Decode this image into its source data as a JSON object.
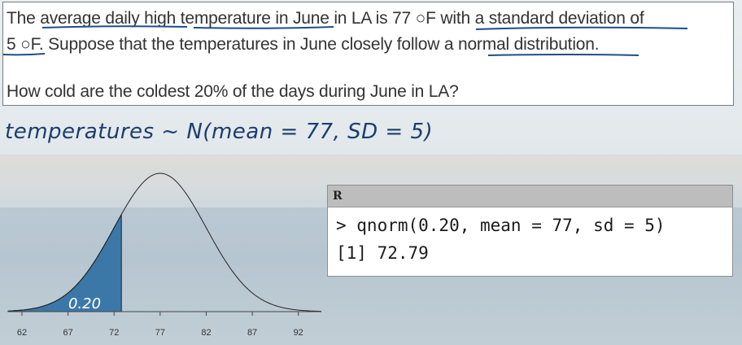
{
  "question": {
    "line1": "The average daily high temperature in June in LA is 77 ○F with a standard deviation of",
    "line2": "5 ○F. Suppose that the temperatures in June closely follow a normal distribution.",
    "line3": "How cold are the coldest 20% of the days during June in LA?"
  },
  "annotation": {
    "model": "temperatures ~ N(mean = 77, SD = 5)"
  },
  "r_console": {
    "header": "R",
    "command": "> qnorm(0.20, mean = 77, sd = 5)",
    "output": "[1] 72.79"
  },
  "plot": {
    "mean": 77,
    "sd": 5,
    "shaded_area_label": "0.20",
    "cutoff": 72.79,
    "ticks": [
      "62",
      "67",
      "72",
      "77",
      "82",
      "87",
      "92"
    ],
    "shade_color": "#3b78a8"
  }
}
